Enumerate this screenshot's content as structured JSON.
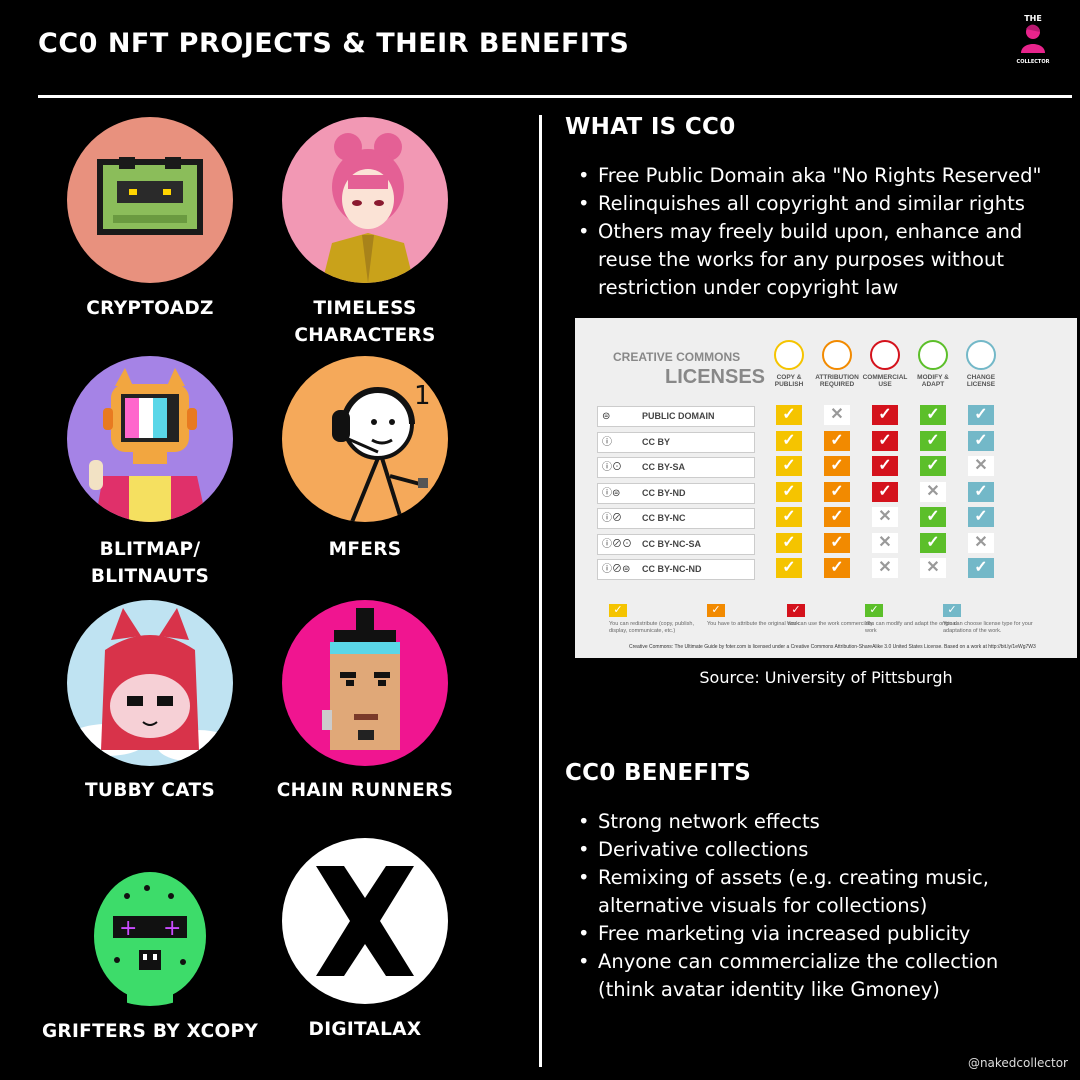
{
  "header": {
    "title": "CC0 NFT PROJECTS & THEIR BENEFITS"
  },
  "brand": {
    "line1": "THE",
    "line2": "COLLECTOR"
  },
  "projects": [
    {
      "name": "CRYPTOADZ"
    },
    {
      "name": "TIMELESS CHARACTERS"
    },
    {
      "name": "BLITMAP/ BLITNAUTS"
    },
    {
      "name": "MFERS"
    },
    {
      "name": "TUBBY CATS"
    },
    {
      "name": "CHAIN RUNNERS"
    },
    {
      "name": "GRIFTERS BY XCOPY"
    },
    {
      "name": "DIGITALAX"
    }
  ],
  "what_is": {
    "heading": "WHAT IS CC0",
    "bullets": [
      "Free Public Domain aka \"No Rights Reserved\"",
      "Relinquishes all copyright and similar rights",
      "Others may freely build upon, enhance and reuse the works for any purposes without restriction under copyright law"
    ]
  },
  "cc_chart": {
    "heading_small": "CREATIVE COMMONS",
    "heading_large": "LICENSES",
    "columns": [
      "COPY & PUBLISH",
      "ATTRIBUTION REQUIRED",
      "COMMERCIAL USE",
      "MODIFY & ADAPT",
      "CHANGE LICENSE"
    ],
    "column_colors": [
      "#f5c400",
      "#f28a00",
      "#d4121c",
      "#5cbf2a",
      "#73b8c8"
    ],
    "licenses": [
      {
        "icons": "⊜",
        "label": "PUBLIC DOMAIN",
        "marks": [
          "✓",
          "✕",
          "✓",
          "✓",
          "✓"
        ]
      },
      {
        "icons": "ⓘ",
        "label": "CC BY",
        "marks": [
          "✓",
          "✓",
          "✓",
          "✓",
          "✓"
        ]
      },
      {
        "icons": "ⓘ⊙",
        "label": "CC BY-SA",
        "marks": [
          "✓",
          "✓",
          "✓",
          "✓",
          "✕"
        ]
      },
      {
        "icons": "ⓘ⊜",
        "label": "CC BY-ND",
        "marks": [
          "✓",
          "✓",
          "✓",
          "✕",
          "✓"
        ]
      },
      {
        "icons": "ⓘ⊘",
        "label": "CC BY-NC",
        "marks": [
          "✓",
          "✓",
          "✕",
          "✓",
          "✓"
        ]
      },
      {
        "icons": "ⓘ⊘⊙",
        "label": "CC BY-NC-SA",
        "marks": [
          "✓",
          "✓",
          "✕",
          "✓",
          "✕"
        ]
      },
      {
        "icons": "ⓘ⊘⊜",
        "label": "CC BY-NC-ND",
        "marks": [
          "✓",
          "✓",
          "✕",
          "✕",
          "✓"
        ]
      }
    ],
    "legend": [
      "You can redistribute (copy, publish, display, communicate, etc.)",
      "You have to attribute the original work",
      "You can use the work commercially",
      "You can modify and adapt the original work",
      "You can choose license type for your adaptations of the work."
    ],
    "footnote": "Creative Commons: The Ultimate Guide by foter.com is licensed under a Creative Commons Attribution-ShareAlike 3.0 United States License. Based on a work at http://bit.ly/1eWg7W3"
  },
  "source": "Source: University of Pittsburgh",
  "benefits": {
    "heading": "CC0 BENEFITS",
    "bullets": [
      "Strong network effects",
      "Derivative collections",
      "Remixing of assets (e.g. creating music, alternative visuals for collections)",
      "Free marketing via increased publicity",
      "Anyone can commercialize the collection (think avatar identity like Gmoney)"
    ]
  },
  "handle": "@nakedcollector"
}
